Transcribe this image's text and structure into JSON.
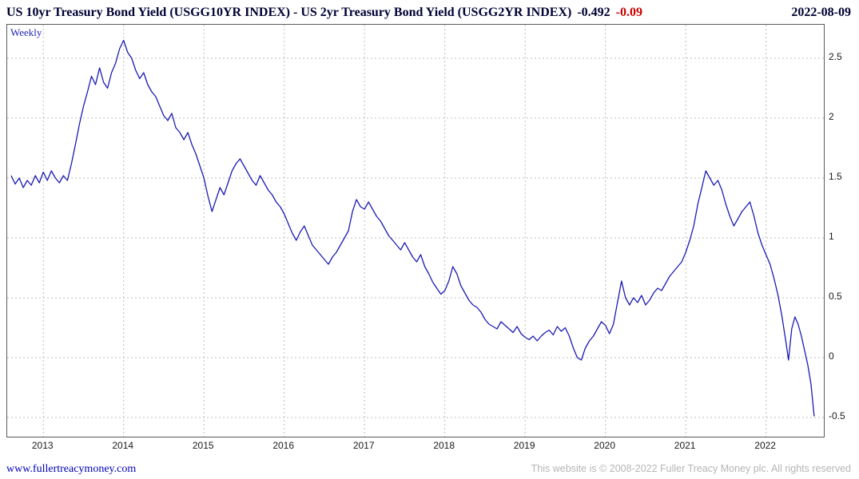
{
  "header": {
    "title": "US 10yr Treasury Bond Yield (USGG10YR INDEX) - US 2yr Treasury Bond Yield (USGG2YR INDEX)",
    "last_value": "-0.492",
    "change": "-0.09",
    "date": "2022-08-09"
  },
  "chart": {
    "frequency_label": "Weekly"
  },
  "footer": {
    "site_link": "www.fullertreacymoney.com",
    "copyright": "This website is © 2008-2022 Fuller Treacy Money plc. All rights reserved"
  },
  "colors": {
    "line": "#1b1bb4",
    "title": "#000033",
    "change_negative": "#cc0000",
    "grid": "#bcbcbc",
    "frequency_label": "#2323bb",
    "link": "#0000b8",
    "copyright": "#b5b5b5"
  },
  "chart_data": {
    "type": "line",
    "title": "US 10yr Treasury Bond Yield (USGG10YR INDEX) - US 2yr Treasury Bond Yield (USGG2YR INDEX)",
    "frequency": "Weekly",
    "last_value": -0.492,
    "change": -0.09,
    "as_of_date": "2022-08-09",
    "xlabel": "",
    "ylabel": "",
    "xlim": [
      2012.55,
      2022.72
    ],
    "ylim": [
      -0.66,
      2.78
    ],
    "x_ticks": [
      2013,
      2014,
      2015,
      2016,
      2017,
      2018,
      2019,
      2020,
      2021,
      2022
    ],
    "y_ticks": [
      2.5,
      2,
      1.5,
      1,
      0.5,
      0,
      -0.5
    ],
    "grid": true,
    "legend_position": "none",
    "line_color": "#1b1bb4",
    "series": [
      {
        "name": "US 10yr minus US 2yr Treasury yield spread",
        "points": [
          [
            2012.6,
            1.52
          ],
          [
            2012.65,
            1.45
          ],
          [
            2012.7,
            1.5
          ],
          [
            2012.75,
            1.42
          ],
          [
            2012.8,
            1.48
          ],
          [
            2012.85,
            1.44
          ],
          [
            2012.9,
            1.52
          ],
          [
            2012.95,
            1.46
          ],
          [
            2013.0,
            1.55
          ],
          [
            2013.05,
            1.48
          ],
          [
            2013.1,
            1.56
          ],
          [
            2013.15,
            1.5
          ],
          [
            2013.2,
            1.46
          ],
          [
            2013.25,
            1.52
          ],
          [
            2013.3,
            1.48
          ],
          [
            2013.35,
            1.62
          ],
          [
            2013.4,
            1.78
          ],
          [
            2013.45,
            1.95
          ],
          [
            2013.5,
            2.1
          ],
          [
            2013.55,
            2.22
          ],
          [
            2013.6,
            2.35
          ],
          [
            2013.65,
            2.28
          ],
          [
            2013.7,
            2.42
          ],
          [
            2013.75,
            2.3
          ],
          [
            2013.8,
            2.25
          ],
          [
            2013.85,
            2.38
          ],
          [
            2013.9,
            2.46
          ],
          [
            2013.95,
            2.58
          ],
          [
            2014.0,
            2.65
          ],
          [
            2014.05,
            2.55
          ],
          [
            2014.1,
            2.5
          ],
          [
            2014.15,
            2.4
          ],
          [
            2014.2,
            2.33
          ],
          [
            2014.25,
            2.38
          ],
          [
            2014.3,
            2.28
          ],
          [
            2014.35,
            2.22
          ],
          [
            2014.4,
            2.18
          ],
          [
            2014.45,
            2.1
          ],
          [
            2014.5,
            2.02
          ],
          [
            2014.55,
            1.98
          ],
          [
            2014.6,
            2.04
          ],
          [
            2014.65,
            1.92
          ],
          [
            2014.7,
            1.88
          ],
          [
            2014.75,
            1.82
          ],
          [
            2014.8,
            1.88
          ],
          [
            2014.85,
            1.78
          ],
          [
            2014.9,
            1.7
          ],
          [
            2014.95,
            1.6
          ],
          [
            2015.0,
            1.5
          ],
          [
            2015.05,
            1.35
          ],
          [
            2015.1,
            1.22
          ],
          [
            2015.15,
            1.32
          ],
          [
            2015.2,
            1.42
          ],
          [
            2015.25,
            1.36
          ],
          [
            2015.3,
            1.46
          ],
          [
            2015.35,
            1.56
          ],
          [
            2015.4,
            1.62
          ],
          [
            2015.45,
            1.66
          ],
          [
            2015.5,
            1.6
          ],
          [
            2015.55,
            1.54
          ],
          [
            2015.6,
            1.48
          ],
          [
            2015.65,
            1.44
          ],
          [
            2015.7,
            1.52
          ],
          [
            2015.75,
            1.46
          ],
          [
            2015.8,
            1.4
          ],
          [
            2015.85,
            1.36
          ],
          [
            2015.9,
            1.3
          ],
          [
            2015.95,
            1.26
          ],
          [
            2016.0,
            1.2
          ],
          [
            2016.05,
            1.12
          ],
          [
            2016.1,
            1.04
          ],
          [
            2016.15,
            0.98
          ],
          [
            2016.2,
            1.05
          ],
          [
            2016.25,
            1.1
          ],
          [
            2016.3,
            1.02
          ],
          [
            2016.35,
            0.94
          ],
          [
            2016.4,
            0.9
          ],
          [
            2016.45,
            0.86
          ],
          [
            2016.5,
            0.82
          ],
          [
            2016.55,
            0.78
          ],
          [
            2016.6,
            0.84
          ],
          [
            2016.65,
            0.88
          ],
          [
            2016.7,
            0.94
          ],
          [
            2016.75,
            1.0
          ],
          [
            2016.8,
            1.06
          ],
          [
            2016.85,
            1.22
          ],
          [
            2016.9,
            1.32
          ],
          [
            2016.95,
            1.26
          ],
          [
            2017.0,
            1.24
          ],
          [
            2017.05,
            1.3
          ],
          [
            2017.1,
            1.24
          ],
          [
            2017.15,
            1.18
          ],
          [
            2017.2,
            1.14
          ],
          [
            2017.25,
            1.08
          ],
          [
            2017.3,
            1.02
          ],
          [
            2017.35,
            0.98
          ],
          [
            2017.4,
            0.94
          ],
          [
            2017.45,
            0.9
          ],
          [
            2017.5,
            0.96
          ],
          [
            2017.55,
            0.9
          ],
          [
            2017.6,
            0.84
          ],
          [
            2017.65,
            0.8
          ],
          [
            2017.7,
            0.86
          ],
          [
            2017.75,
            0.76
          ],
          [
            2017.8,
            0.7
          ],
          [
            2017.85,
            0.63
          ],
          [
            2017.9,
            0.58
          ],
          [
            2017.95,
            0.53
          ],
          [
            2018.0,
            0.56
          ],
          [
            2018.05,
            0.64
          ],
          [
            2018.1,
            0.76
          ],
          [
            2018.15,
            0.7
          ],
          [
            2018.2,
            0.6
          ],
          [
            2018.25,
            0.54
          ],
          [
            2018.3,
            0.48
          ],
          [
            2018.35,
            0.44
          ],
          [
            2018.4,
            0.42
          ],
          [
            2018.45,
            0.38
          ],
          [
            2018.5,
            0.32
          ],
          [
            2018.55,
            0.28
          ],
          [
            2018.6,
            0.26
          ],
          [
            2018.65,
            0.24
          ],
          [
            2018.7,
            0.3
          ],
          [
            2018.75,
            0.27
          ],
          [
            2018.8,
            0.24
          ],
          [
            2018.85,
            0.21
          ],
          [
            2018.9,
            0.26
          ],
          [
            2018.95,
            0.2
          ],
          [
            2019.0,
            0.17
          ],
          [
            2019.05,
            0.15
          ],
          [
            2019.1,
            0.18
          ],
          [
            2019.15,
            0.14
          ],
          [
            2019.2,
            0.18
          ],
          [
            2019.25,
            0.21
          ],
          [
            2019.3,
            0.23
          ],
          [
            2019.35,
            0.19
          ],
          [
            2019.4,
            0.26
          ],
          [
            2019.45,
            0.22
          ],
          [
            2019.5,
            0.25
          ],
          [
            2019.55,
            0.18
          ],
          [
            2019.6,
            0.08
          ],
          [
            2019.65,
            0.0
          ],
          [
            2019.7,
            -0.02
          ],
          [
            2019.75,
            0.08
          ],
          [
            2019.8,
            0.14
          ],
          [
            2019.85,
            0.18
          ],
          [
            2019.9,
            0.24
          ],
          [
            2019.95,
            0.3
          ],
          [
            2020.0,
            0.27
          ],
          [
            2020.05,
            0.2
          ],
          [
            2020.1,
            0.28
          ],
          [
            2020.15,
            0.46
          ],
          [
            2020.2,
            0.64
          ],
          [
            2020.25,
            0.5
          ],
          [
            2020.3,
            0.44
          ],
          [
            2020.35,
            0.5
          ],
          [
            2020.4,
            0.46
          ],
          [
            2020.45,
            0.52
          ],
          [
            2020.5,
            0.44
          ],
          [
            2020.55,
            0.48
          ],
          [
            2020.6,
            0.54
          ],
          [
            2020.65,
            0.58
          ],
          [
            2020.7,
            0.56
          ],
          [
            2020.75,
            0.62
          ],
          [
            2020.8,
            0.68
          ],
          [
            2020.85,
            0.72
          ],
          [
            2020.9,
            0.76
          ],
          [
            2020.95,
            0.8
          ],
          [
            2021.0,
            0.88
          ],
          [
            2021.05,
            0.98
          ],
          [
            2021.1,
            1.1
          ],
          [
            2021.15,
            1.28
          ],
          [
            2021.2,
            1.42
          ],
          [
            2021.25,
            1.56
          ],
          [
            2021.3,
            1.5
          ],
          [
            2021.35,
            1.44
          ],
          [
            2021.4,
            1.48
          ],
          [
            2021.45,
            1.4
          ],
          [
            2021.5,
            1.28
          ],
          [
            2021.55,
            1.18
          ],
          [
            2021.6,
            1.1
          ],
          [
            2021.65,
            1.16
          ],
          [
            2021.7,
            1.22
          ],
          [
            2021.75,
            1.26
          ],
          [
            2021.8,
            1.3
          ],
          [
            2021.85,
            1.18
          ],
          [
            2021.9,
            1.04
          ],
          [
            2021.95,
            0.94
          ],
          [
            2022.0,
            0.86
          ],
          [
            2022.05,
            0.78
          ],
          [
            2022.1,
            0.66
          ],
          [
            2022.15,
            0.52
          ],
          [
            2022.2,
            0.34
          ],
          [
            2022.25,
            0.12
          ],
          [
            2022.28,
            -0.02
          ],
          [
            2022.32,
            0.24
          ],
          [
            2022.36,
            0.34
          ],
          [
            2022.4,
            0.28
          ],
          [
            2022.44,
            0.18
          ],
          [
            2022.48,
            0.06
          ],
          [
            2022.52,
            -0.06
          ],
          [
            2022.56,
            -0.22
          ],
          [
            2022.6,
            -0.49
          ]
        ]
      }
    ]
  }
}
